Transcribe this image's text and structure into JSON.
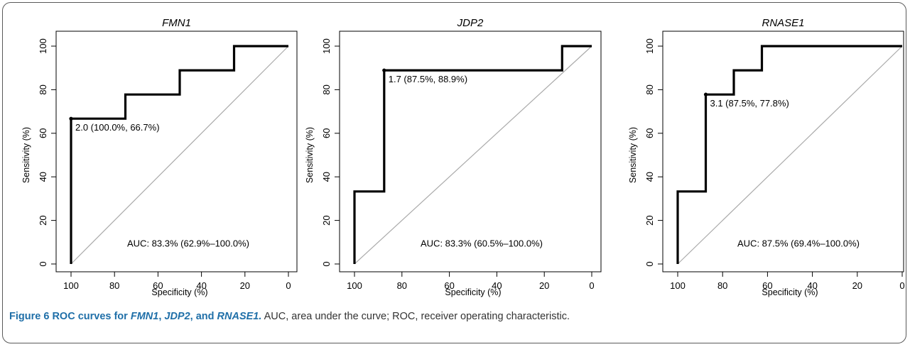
{
  "caption": {
    "figure_label": "Figure 6",
    "title_parts": [
      {
        "text": "ROC curves for ",
        "italic": false
      },
      {
        "text": "FMN1",
        "italic": true
      },
      {
        "text": ", ",
        "italic": false
      },
      {
        "text": "JDP2",
        "italic": true
      },
      {
        "text": ", and ",
        "italic": false
      },
      {
        "text": "RNASE1",
        "italic": true
      },
      {
        "text": ".",
        "italic": true
      }
    ],
    "description": "AUC, area under the curve; ROC, receiver operating characteristic."
  },
  "chart_data": [
    {
      "type": "line",
      "title": "FMN1",
      "xlabel": "Specificity (%)",
      "ylabel": "Sensitivity (%)",
      "xlim": [
        100,
        0
      ],
      "ylim": [
        0,
        100
      ],
      "x_ticks": [
        100,
        80,
        60,
        40,
        20,
        0
      ],
      "y_ticks": [
        0,
        20,
        40,
        60,
        80,
        100
      ],
      "series": [
        {
          "x": [
            100,
            100,
            75,
            75,
            50,
            50,
            25,
            25,
            0
          ],
          "y": [
            0,
            66.7,
            66.7,
            77.8,
            77.8,
            88.9,
            88.9,
            100,
            100
          ]
        }
      ],
      "reference_line": {
        "x": [
          100,
          0
        ],
        "y": [
          0,
          100
        ],
        "color": "#aaaaaa"
      },
      "best_point": {
        "x": 100,
        "y": 66.7,
        "label": "2.0 (100.0%, 66.7%)"
      },
      "annotation": "AUC: 83.3% (62.9%–100.0%)",
      "line_color": "#000000"
    },
    {
      "type": "line",
      "title": "JDP2",
      "xlabel": "Specificity (%)",
      "ylabel": "Sensitivity (%)",
      "xlim": [
        100,
        0
      ],
      "ylim": [
        0,
        100
      ],
      "x_ticks": [
        100,
        80,
        60,
        40,
        20,
        0
      ],
      "y_ticks": [
        0,
        20,
        40,
        60,
        80,
        100
      ],
      "series": [
        {
          "x": [
            100,
            100,
            87.5,
            87.5,
            12.5,
            12.5,
            0
          ],
          "y": [
            0,
            33.3,
            33.3,
            88.9,
            88.9,
            100,
            100
          ]
        }
      ],
      "reference_line": {
        "x": [
          100,
          0
        ],
        "y": [
          0,
          100
        ],
        "color": "#aaaaaa"
      },
      "best_point": {
        "x": 87.5,
        "y": 88.9,
        "label": "1.7 (87.5%, 88.9%)"
      },
      "annotation": "AUC: 83.3% (60.5%–100.0%)",
      "line_color": "#000000"
    },
    {
      "type": "line",
      "title": "RNASE1",
      "xlabel": "Specificity (%)",
      "ylabel": "Sensitivity (%)",
      "xlim": [
        100,
        0
      ],
      "ylim": [
        0,
        100
      ],
      "x_ticks": [
        100,
        80,
        60,
        40,
        20,
        0
      ],
      "y_ticks": [
        0,
        20,
        40,
        60,
        80,
        100
      ],
      "series": [
        {
          "x": [
            100,
            100,
            87.5,
            87.5,
            75,
            75,
            62.5,
            62.5,
            0
          ],
          "y": [
            0,
            33.3,
            33.3,
            77.8,
            77.8,
            88.9,
            88.9,
            100,
            100
          ]
        }
      ],
      "reference_line": {
        "x": [
          100,
          0
        ],
        "y": [
          0,
          100
        ],
        "color": "#aaaaaa"
      },
      "best_point": {
        "x": 87.5,
        "y": 77.8,
        "label": "3.1 (87.5%, 77.8%)"
      },
      "annotation": "AUC: 87.5% (69.4%–100.0%)",
      "line_color": "#000000"
    }
  ]
}
